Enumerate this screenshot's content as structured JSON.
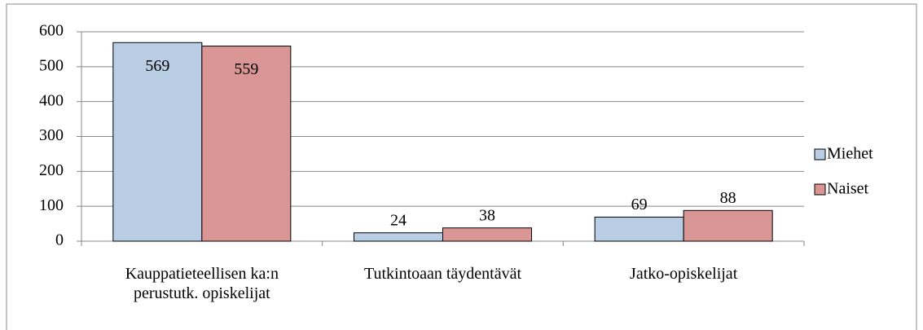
{
  "chart_data": {
    "type": "bar",
    "categories": [
      "Kauppatieteellisen ka:n perustutk. opiskelijat",
      "Tutkintoaan täydentävät",
      "Jatko-opiskelijat"
    ],
    "series": [
      {
        "name": "Miehet",
        "color": "#b9cde5",
        "values": [
          569,
          24,
          69
        ]
      },
      {
        "name": "Naiset",
        "color": "#d99694",
        "values": [
          559,
          38,
          88
        ]
      }
    ],
    "ylim": [
      0,
      600
    ],
    "yticks": [
      0,
      100,
      200,
      300,
      400,
      500,
      600
    ],
    "grid": true,
    "legend": "right"
  }
}
